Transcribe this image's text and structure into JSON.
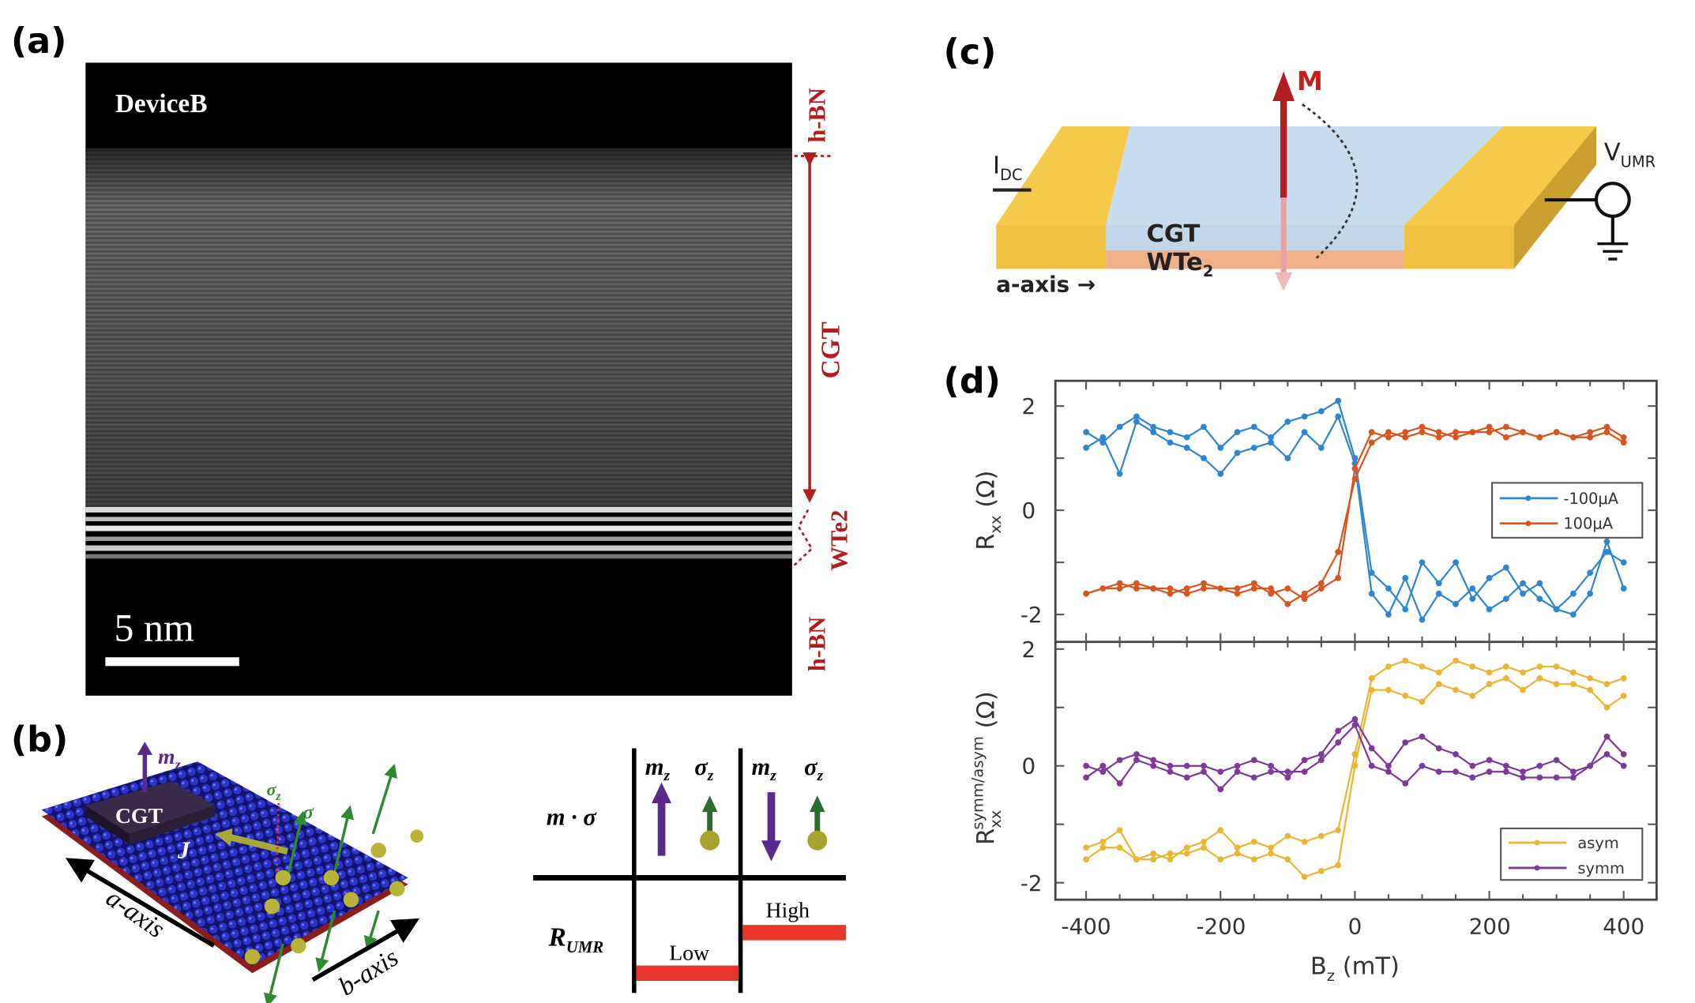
{
  "panels": {
    "a": {
      "label": "(a)",
      "device_name": "DeviceB",
      "scale_bar": "5 nm",
      "layers": [
        "h-BN",
        "CGT",
        "WTe2",
        "h-BN"
      ]
    },
    "b": {
      "label": "(b)",
      "block": "CGT",
      "m_z": "m",
      "m_z_sub": "z",
      "sigma_z": "σ",
      "sigma_z_sub": "z",
      "sigma": "σ",
      "current": "J",
      "a_axis": "a-axis",
      "b_axis": "b-axis",
      "table": {
        "row1": "m · σ",
        "row2": "R",
        "row2_sub": "UMR",
        "col_head_m": "m",
        "col_head_m_sub": "z",
        "col_head_s": "σ",
        "col_head_s_sub": "z",
        "low": "Low",
        "high": "High"
      }
    },
    "c": {
      "label": "(c)",
      "magnetization": "M",
      "current": "I",
      "current_sub": "DC",
      "voltage": "V",
      "voltage_sub": "UMR",
      "top_layer": "CGT",
      "bottom_layer": "WTe",
      "bottom_layer_sub": "2",
      "axis": "a-axis →"
    },
    "d": {
      "label": "(d)"
    }
  },
  "chart_data": {
    "type": "line",
    "xlabel": "B",
    "xlabel_sub": "z",
    "xlabel_unit": "(mT)",
    "xlim": [
      -440,
      440
    ],
    "xticks": [
      "-400",
      "-200",
      "0",
      "200",
      "400"
    ],
    "x": [
      -400,
      -375,
      -350,
      -325,
      -300,
      -275,
      -250,
      -225,
      -200,
      -175,
      -150,
      -125,
      -100,
      -75,
      -50,
      -25,
      0,
      25,
      50,
      75,
      100,
      125,
      150,
      175,
      200,
      225,
      250,
      275,
      300,
      325,
      350,
      375,
      400
    ],
    "panels": [
      {
        "ylabel": "R",
        "ylabel_sub": "xx",
        "ylabel_unit": "(Ω)",
        "ylim": [
          -2.4,
          2.4
        ],
        "yticks": [
          "2",
          "0",
          "-2"
        ],
        "legend_position": "center-right",
        "series": [
          {
            "name": "-100μA",
            "color": "#2f86cf",
            "branches": [
              [
                1.5,
                1.3,
                1.6,
                1.8,
                1.6,
                1.5,
                1.4,
                1.6,
                1.2,
                1.5,
                1.6,
                1.4,
                1.7,
                1.8,
                1.9,
                2.1,
                1.0,
                -1.2,
                -1.5,
                -1.9,
                -1.0,
                -1.4,
                -1.0,
                -1.7,
                -1.3,
                -1.1,
                -1.6,
                -1.4,
                -1.9,
                -1.6,
                -1.2,
                -0.8,
                -1.0
              ],
              [
                1.2,
                1.4,
                0.7,
                1.7,
                1.5,
                1.3,
                1.2,
                1.0,
                0.7,
                1.1,
                1.2,
                1.3,
                1.0,
                1.5,
                1.2,
                1.8,
                0.9,
                -1.6,
                -2.0,
                -1.3,
                -2.1,
                -1.6,
                -1.8,
                -1.5,
                -1.9,
                -1.7,
                -1.4,
                -1.7,
                -1.9,
                -2.0,
                -1.6,
                -0.6,
                -1.5
              ]
            ]
          },
          {
            "name": "100μA",
            "color": "#d9541e",
            "branches": [
              [
                -1.6,
                -1.5,
                -1.4,
                -1.5,
                -1.5,
                -1.6,
                -1.5,
                -1.4,
                -1.5,
                -1.5,
                -1.4,
                -1.6,
                -1.5,
                -1.7,
                -1.5,
                -1.3,
                0.8,
                1.5,
                1.4,
                1.5,
                1.6,
                1.5,
                1.4,
                1.5,
                1.5,
                1.6,
                1.5,
                1.4,
                1.5,
                1.4,
                1.5,
                1.6,
                1.4
              ],
              [
                -1.6,
                -1.5,
                -1.5,
                -1.4,
                -1.5,
                -1.5,
                -1.6,
                -1.5,
                -1.5,
                -1.6,
                -1.5,
                -1.5,
                -1.8,
                -1.6,
                -1.4,
                -0.8,
                0.6,
                1.3,
                1.5,
                1.4,
                1.5,
                1.4,
                1.5,
                1.5,
                1.6,
                1.4,
                1.5,
                1.4,
                1.5,
                1.4,
                1.4,
                1.5,
                1.3
              ]
            ]
          }
        ]
      },
      {
        "ylabel": "R",
        "ylabel_sub": "xx",
        "ylabel_sup": "symm/asym",
        "ylabel_unit": "(Ω)",
        "ylim": [
          -2.2,
          2.2
        ],
        "yticks": [
          "2",
          "0",
          "-2"
        ],
        "legend_position": "bottom-right",
        "series": [
          {
            "name": "asym",
            "color": "#eab435",
            "branches": [
              [
                -1.4,
                -1.3,
                -1.1,
                -1.6,
                -1.5,
                -1.6,
                -1.4,
                -1.3,
                -1.1,
                -1.4,
                -1.3,
                -1.4,
                -1.2,
                -1.3,
                -1.2,
                -1.1,
                0.2,
                1.5,
                1.7,
                1.8,
                1.7,
                1.6,
                1.8,
                1.7,
                1.6,
                1.7,
                1.6,
                1.7,
                1.7,
                1.6,
                1.5,
                1.4,
                1.5
              ],
              [
                -1.6,
                -1.4,
                -1.4,
                -1.6,
                -1.6,
                -1.5,
                -1.5,
                -1.4,
                -1.6,
                -1.5,
                -1.6,
                -1.5,
                -1.6,
                -1.9,
                -1.8,
                -1.7,
                0.0,
                1.3,
                1.3,
                1.2,
                1.1,
                1.4,
                1.3,
                1.2,
                1.4,
                1.5,
                1.3,
                1.5,
                1.4,
                1.4,
                1.3,
                1.0,
                1.2
              ]
            ]
          },
          {
            "name": "symm",
            "color": "#7e3a9a",
            "branches": [
              [
                0.0,
                -0.1,
                0.1,
                0.2,
                0.1,
                0.0,
                0.0,
                0.0,
                -0.1,
                0.0,
                0.1,
                0.0,
                -0.2,
                0.1,
                0.2,
                0.6,
                0.8,
                0.3,
                0.0,
                0.4,
                0.5,
                0.3,
                0.2,
                0.0,
                0.1,
                0.0,
                -0.1,
                0.0,
                0.1,
                -0.1,
                0.0,
                0.5,
                0.2
              ],
              [
                -0.2,
                0.0,
                -0.3,
                0.1,
                0.0,
                -0.1,
                -0.2,
                -0.1,
                -0.4,
                -0.1,
                -0.2,
                -0.1,
                -0.1,
                -0.1,
                0.1,
                0.4,
                0.7,
                0.0,
                -0.1,
                -0.3,
                0.0,
                -0.1,
                -0.1,
                -0.2,
                -0.1,
                -0.1,
                -0.2,
                -0.2,
                -0.2,
                -0.2,
                0.0,
                0.2,
                0.0
              ]
            ]
          }
        ]
      }
    ]
  }
}
